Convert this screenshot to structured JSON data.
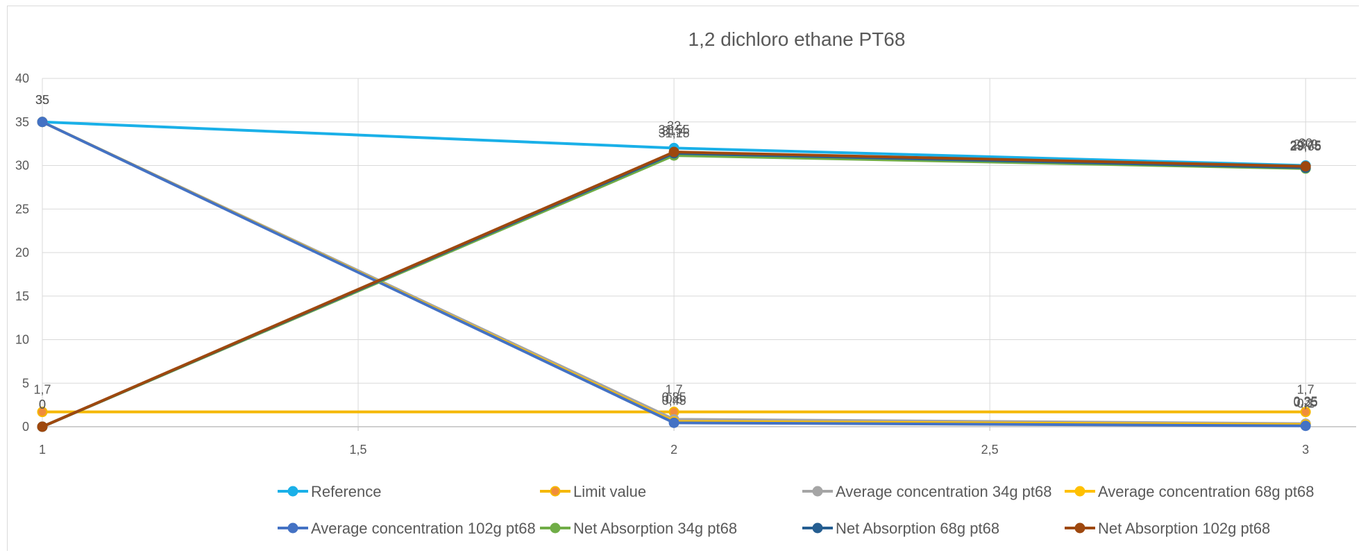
{
  "chart_data": {
    "type": "line",
    "title": "1,2 dichloro ethane PT68",
    "xlabel": "",
    "ylabel": "",
    "x": [
      1,
      2,
      3
    ],
    "x_tick_labels": [
      "1",
      "1,5",
      "2",
      "2,5",
      "3"
    ],
    "x_ticks": [
      1,
      1.5,
      2,
      2.5,
      3
    ],
    "xlim": [
      1,
      3.08
    ],
    "ylim": [
      0,
      40
    ],
    "y_ticks": [
      0,
      5,
      10,
      15,
      20,
      25,
      30,
      35,
      40
    ],
    "y_tick_labels": [
      "0",
      "5",
      "10",
      "15",
      "20",
      "25",
      "30",
      "35",
      "40"
    ],
    "grid": true,
    "legend_position": "bottom",
    "series": [
      {
        "name": "Reference",
        "color": "#1ab0e8",
        "values": [
          35,
          32,
          30
        ],
        "labels": [
          "35",
          "32",
          "30"
        ]
      },
      {
        "name": "Limit value",
        "color": "#f5b800",
        "marker_color": "#f08c3a",
        "values": [
          1.7,
          1.7,
          1.7
        ],
        "labels": [
          "1,7",
          "1,7",
          "1,7"
        ]
      },
      {
        "name": "Average concentration 34g pt68",
        "color": "#a5a5a5",
        "values": [
          35,
          0.85,
          0.35
        ],
        "labels": [
          "35",
          "0,85",
          "0,35"
        ]
      },
      {
        "name": "Average concentration 68g pt68",
        "color": "#ffc000",
        "values": [
          35,
          0.6,
          0.25
        ],
        "labels": [
          "35",
          "0,6",
          "0,25"
        ]
      },
      {
        "name": "Average concentration 102g pt68",
        "color": "#4472c4",
        "values": [
          35,
          0.45,
          0.1
        ],
        "labels": [
          "35",
          "0,45",
          "0,1"
        ]
      },
      {
        "name": "Net Absorption 34g pt68",
        "color": "#70ad47",
        "values": [
          0,
          31.15,
          29.65
        ],
        "labels": [
          "0",
          "31,15",
          "29,65"
        ]
      },
      {
        "name": "Net Absorption 68g pt68",
        "color": "#255e91",
        "values": [
          0,
          31.4,
          29.75
        ],
        "labels": [
          "0",
          "31,4",
          "29,75"
        ]
      },
      {
        "name": "Net Absorption 102g pt68",
        "color": "#9e480e",
        "values": [
          0,
          31.55,
          29.9
        ],
        "labels": [
          "0",
          "31,55",
          "29,9"
        ]
      }
    ]
  }
}
